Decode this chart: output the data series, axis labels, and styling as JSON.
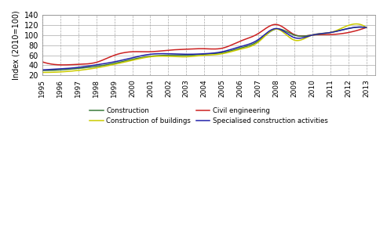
{
  "title": "",
  "ylabel": "Index (2010=100)",
  "ylim": [
    20,
    140
  ],
  "yticks": [
    20,
    40,
    60,
    80,
    100,
    120,
    140
  ],
  "years": [
    1995,
    1996,
    1997,
    1998,
    1999,
    2000,
    2001,
    2002,
    2003,
    2004,
    2005,
    2006,
    2007,
    2008,
    2009,
    2010,
    2011,
    2012,
    2013
  ],
  "construction": [
    30,
    31,
    34,
    38,
    44,
    52,
    58,
    60,
    60,
    62,
    65,
    74,
    88,
    112,
    100,
    100,
    105,
    113,
    115
  ],
  "construction_of_buildings": [
    26,
    27,
    30,
    35,
    42,
    50,
    57,
    58,
    57,
    60,
    63,
    72,
    86,
    112,
    90,
    100,
    105,
    119,
    115
  ],
  "civil_engineering": [
    47,
    41,
    42,
    46,
    60,
    67,
    67,
    70,
    72,
    73,
    74,
    88,
    103,
    121,
    101,
    100,
    101,
    105,
    115
  ],
  "specialised": [
    31,
    33,
    36,
    41,
    47,
    55,
    62,
    63,
    62,
    63,
    67,
    77,
    91,
    113,
    95,
    100,
    105,
    113,
    115
  ],
  "construction_color": "#3b7a3b",
  "construction_of_buildings_color": "#cccc00",
  "civil_engineering_color": "#cc2222",
  "specialised_color": "#2222aa",
  "legend_construction": "Construction",
  "legend_cob": "Construction of buildings",
  "legend_civil": "Civil engineering",
  "legend_specialised": "Specialised construction activities",
  "grid_color": "#aaaaaa",
  "background_color": "#ffffff"
}
